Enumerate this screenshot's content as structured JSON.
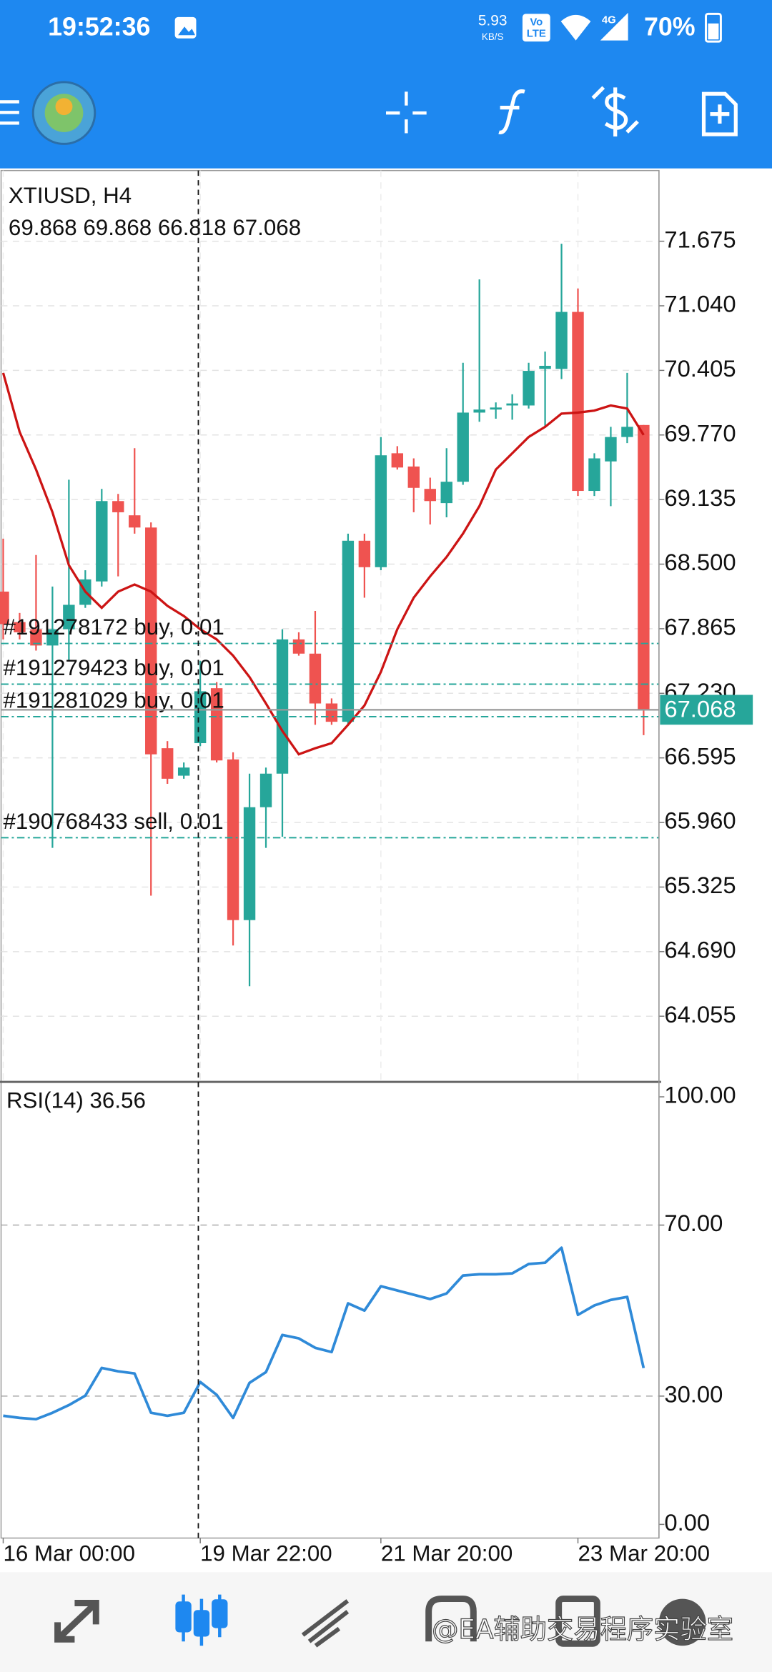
{
  "status_bar": {
    "time": "19:52:36",
    "net_speed": "5.93",
    "net_unit": "KB/S",
    "volte_top": "Vo",
    "volte_bottom": "LTE",
    "network": "4G",
    "battery": "70%"
  },
  "chart": {
    "type": "candlestick",
    "symbol": "XTIUSD, H4",
    "ohlc_text": "69.868 69.868 66.818 67.068",
    "ylim": [
      63.42,
      72.37
    ],
    "yticks": [
      71.675,
      {
        "value": 71.04,
        "label": "71.040"
      },
      70.405,
      {
        "value": 69.77,
        "label": "69.770"
      },
      69.135,
      {
        "value": 68.5,
        "label": "68.500"
      },
      67.865,
      {
        "value": 67.23,
        "label": "67.230"
      },
      66.595,
      {
        "value": 65.96,
        "label": "65.960"
      },
      65.325,
      {
        "value": 64.69,
        "label": "64.690"
      },
      64.055
    ],
    "grid": true,
    "up_color": "#26a69a",
    "down_color": "#ef5350",
    "ma_color": "#cc1414",
    "categories": [
      "16 Mar 00:00",
      null,
      null,
      null,
      null,
      null,
      null,
      null,
      null,
      null,
      null,
      null,
      "19 Mar 22:00",
      null,
      null,
      null,
      null,
      null,
      null,
      null,
      null,
      null,
      null,
      "21 Mar 20:00",
      null,
      null,
      null,
      null,
      null,
      null,
      null,
      null,
      null,
      null,
      null,
      "23 Mar 20:00",
      null,
      null,
      null,
      null
    ],
    "ohlc": [
      [
        68.23,
        68.75,
        67.76,
        67.91
      ],
      [
        67.93,
        68.02,
        67.76,
        67.83
      ],
      [
        67.86,
        68.59,
        67.65,
        67.7
      ],
      [
        67.7,
        68.28,
        65.71,
        67.86
      ],
      [
        67.86,
        69.33,
        67.55,
        68.1
      ],
      [
        68.1,
        68.44,
        68.07,
        68.35
      ],
      [
        68.33,
        69.24,
        68.28,
        69.12
      ],
      [
        69.12,
        69.19,
        68.38,
        69.01
      ],
      [
        68.98,
        69.64,
        68.8,
        68.86
      ],
      [
        68.86,
        68.91,
        65.24,
        66.63
      ],
      [
        66.69,
        66.76,
        66.34,
        66.39
      ],
      [
        66.42,
        66.55,
        66.39,
        66.5
      ],
      [
        66.74,
        67.55,
        66.71,
        67.25
      ],
      [
        67.28,
        67.34,
        66.55,
        66.57
      ],
      [
        66.58,
        66.65,
        64.75,
        65.0
      ],
      [
        65.0,
        66.44,
        64.35,
        66.11
      ],
      [
        66.11,
        66.5,
        65.71,
        66.44
      ],
      [
        66.44,
        67.86,
        65.82,
        67.76
      ],
      [
        67.76,
        67.83,
        67.6,
        67.62
      ],
      [
        67.62,
        68.04,
        66.92,
        67.13
      ],
      [
        67.13,
        67.18,
        66.92,
        66.95
      ],
      [
        66.95,
        68.8,
        66.92,
        68.73
      ],
      [
        68.73,
        68.8,
        68.17,
        68.47
      ],
      [
        68.47,
        69.75,
        68.44,
        69.57
      ],
      [
        69.59,
        69.66,
        69.43,
        69.45
      ],
      [
        69.46,
        69.54,
        69.01,
        69.25
      ],
      [
        69.24,
        69.35,
        68.89,
        69.12
      ],
      [
        69.1,
        69.64,
        68.96,
        69.31
      ],
      [
        69.31,
        70.48,
        69.28,
        69.99
      ],
      [
        69.99,
        71.3,
        69.9,
        70.02
      ],
      [
        70.02,
        70.09,
        69.93,
        70.04
      ],
      [
        70.06,
        70.17,
        69.92,
        70.08
      ],
      [
        70.06,
        70.48,
        70.03,
        70.4
      ],
      [
        70.42,
        70.59,
        69.85,
        70.45
      ],
      [
        70.42,
        71.65,
        70.32,
        70.98
      ],
      [
        70.98,
        71.21,
        69.17,
        69.22
      ],
      [
        69.22,
        69.59,
        69.17,
        69.54
      ],
      [
        69.51,
        69.85,
        69.07,
        69.75
      ],
      [
        69.75,
        70.38,
        69.69,
        69.85
      ],
      [
        69.868,
        69.868,
        66.818,
        67.068
      ]
    ],
    "ma": [
      70.38,
      69.8,
      69.43,
      69.01,
      68.49,
      68.23,
      68.07,
      68.23,
      68.3,
      68.23,
      68.09,
      67.99,
      67.86,
      67.76,
      67.6,
      67.39,
      67.13,
      66.86,
      66.63,
      66.69,
      66.74,
      66.92,
      67.11,
      67.44,
      67.86,
      68.17,
      68.38,
      68.57,
      68.8,
      69.07,
      69.43,
      69.59,
      69.75,
      69.85,
      69.98,
      69.99,
      70.01,
      70.06,
      70.03,
      69.77
    ],
    "price": 67.068,
    "orders": [
      {
        "label": "#191278172 buy, 0.01",
        "price": 67.72
      },
      {
        "label": "#191279423 buy, 0.01",
        "price": 67.32
      },
      {
        "label": "#191281029 buy, 0.01",
        "price": 67.0
      },
      {
        "label": "#190768433 sell, 0.01",
        "price": 65.81
      }
    ]
  },
  "rsi": {
    "type": "line",
    "label": "RSI(14) 36.56",
    "ylim": [
      -3.2,
      103.5
    ],
    "yticks": [
      {
        "value": 100,
        "label": "100.00"
      },
      {
        "value": 70,
        "label": "70.00"
      },
      {
        "value": 30,
        "label": "30.00"
      },
      {
        "value": 0,
        "label": "0.00"
      }
    ],
    "levels": [
      70,
      30
    ],
    "color": "#2f8ad8",
    "values": [
      25.4,
      24.9,
      24.6,
      26.1,
      27.9,
      30.1,
      36.6,
      35.8,
      35.3,
      26.1,
      25.4,
      26.1,
      33.3,
      30.3,
      24.9,
      33.1,
      35.6,
      44.3,
      43.5,
      41.3,
      40.3,
      51.7,
      50.0,
      55.7,
      54.7,
      53.7,
      52.7,
      54.0,
      58.2,
      58.5,
      58.5,
      58.7,
      60.9,
      61.2,
      64.7,
      49.0,
      51.2,
      52.5,
      53.2,
      36.56
    ]
  },
  "watermark": "@EA辅助交易程序实验室"
}
